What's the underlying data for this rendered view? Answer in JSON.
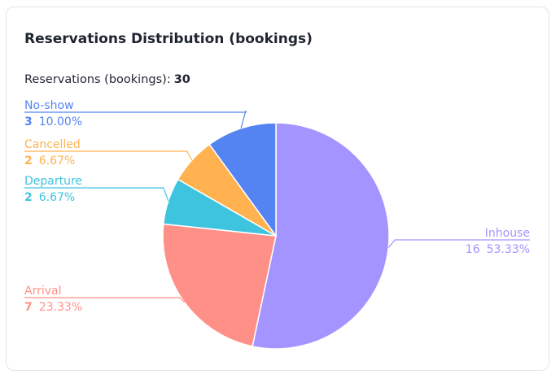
{
  "card": {
    "title": "Reservations Distribution (bookings)",
    "total_label": "Reservations (bookings):",
    "total_value": "30"
  },
  "chart_data": {
    "type": "pie",
    "title": "Reservations Distribution (bookings)",
    "total": 30,
    "slices": [
      {
        "label": "Inhouse",
        "value": 16,
        "percent": "53.33%",
        "color": "#a394ff"
      },
      {
        "label": "Arrival",
        "value": 7,
        "percent": "23.33%",
        "color": "#ff9088"
      },
      {
        "label": "Departure",
        "value": 2,
        "percent": "6.67%",
        "color": "#3fc4e0"
      },
      {
        "label": "Cancelled",
        "value": 2,
        "percent": "6.67%",
        "color": "#ffb24f"
      },
      {
        "label": "No-show",
        "value": 3,
        "percent": "10.00%",
        "color": "#5484f2"
      }
    ]
  }
}
